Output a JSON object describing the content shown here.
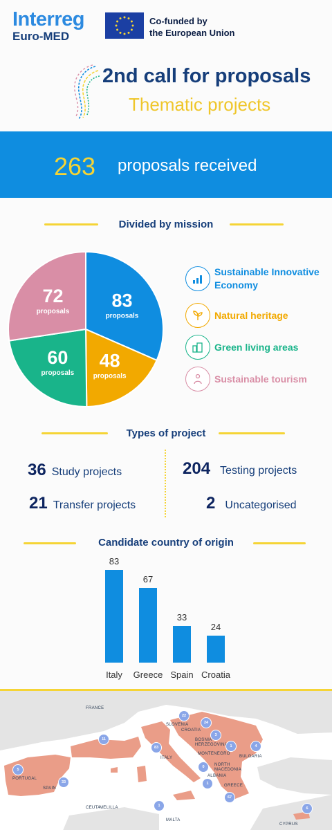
{
  "header": {
    "logo_line1": "Interreg",
    "logo_line2": "Euro-MED",
    "cofunded_line1": "Co-funded by",
    "cofunded_line2": "the European Union"
  },
  "title": {
    "main": "2nd call for proposals",
    "sub": "Thematic projects"
  },
  "banner": {
    "number": "263",
    "text": "proposals received"
  },
  "mission": {
    "heading": "Divided by mission",
    "slice_unit": "proposals",
    "items": [
      {
        "label": "Sustainable Innovative Economy",
        "value": 83,
        "color": "#0f8de0",
        "icon": "economy-icon"
      },
      {
        "label": "Natural heritage",
        "value": 48,
        "color": "#f2a900",
        "icon": "plant-icon"
      },
      {
        "label": "Green living areas",
        "value": 60,
        "color": "#19b48a",
        "icon": "buildings-icon"
      },
      {
        "label": "Sustainable tourism",
        "value": 72,
        "color": "#d98ea6",
        "icon": "tourism-icon"
      }
    ]
  },
  "types": {
    "heading": "Types of project",
    "study": {
      "num": "36",
      "label": "Study projects"
    },
    "transfer": {
      "num": "21",
      "label": "Transfer projects"
    },
    "testing": {
      "num": "204",
      "label": "Testing projects"
    },
    "uncat": {
      "num": "2",
      "label": "Uncategorised"
    }
  },
  "countries": {
    "heading": "Candidate country of origin",
    "chart_data": {
      "type": "bar",
      "categories": [
        "Italy",
        "Greece",
        "Spain",
        "Croatia"
      ],
      "values": [
        83,
        67,
        33,
        24
      ],
      "title": "Candidate country of origin",
      "ylim": [
        0,
        83
      ],
      "grid": false
    }
  },
  "map": {
    "labels": {
      "france": "France",
      "slovenia": "Slovenia",
      "croatia": "Croatia",
      "bosnia": "Bosnia-Herzegovina",
      "montenegro": "Montenegro",
      "bulgaria": "Bulgaria",
      "italy": "Italy",
      "north_macedonia": "North Macedonia",
      "albania": "Albania",
      "greece": "Greece",
      "portugal": "Portugal",
      "spain": "Spain",
      "ceuta": "Ceuta",
      "melilla": "Melilla",
      "malta": "Malta",
      "cyprus": "Cyprus"
    },
    "counts": {
      "slovenia": "22",
      "croatia": "24",
      "bosnia": "3",
      "serbia": "1",
      "bulgaria": "4",
      "france": "11",
      "italy": "83",
      "montenegro": "0",
      "albania": "1",
      "greece": "67",
      "portugal": "5",
      "spain": "33",
      "malta": "1",
      "cyprus": "6"
    },
    "colors": {
      "land_programme": "#ea9d88",
      "land_other": "#e4e4e4",
      "marker": "#8aa6e8"
    }
  }
}
